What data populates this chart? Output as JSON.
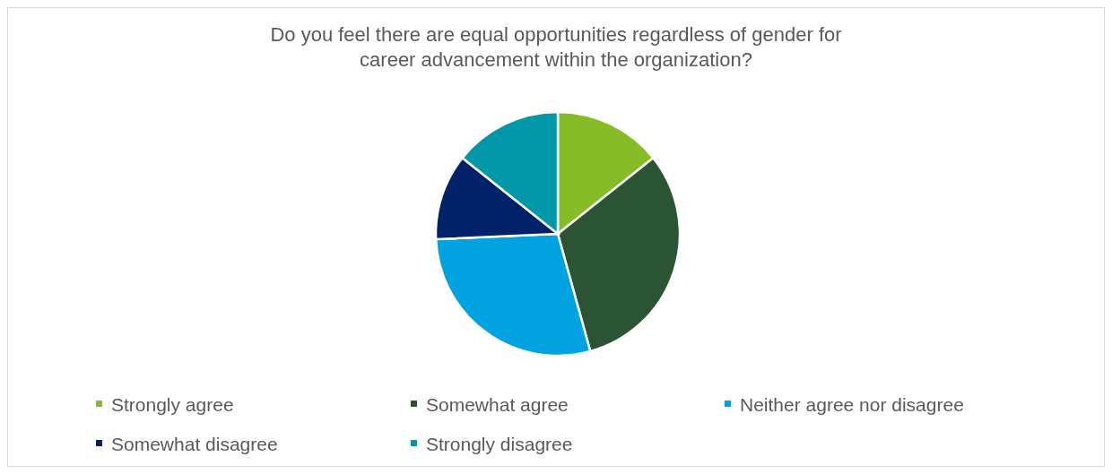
{
  "chart_data": {
    "type": "pie",
    "title": "Do you feel there are equal opportunities regardless of gender for career advancement within the organization?",
    "categories": [
      "Strongly agree",
      "Somewhat agree",
      "Neither agree nor disagree",
      "Somewhat disagree",
      "Strongly disagree"
    ],
    "values": [
      14.3,
      31.4,
      28.6,
      11.4,
      14.3
    ],
    "colors": [
      "#86bc25",
      "#2b5434",
      "#00a3e0",
      "#012169",
      "#0097a9"
    ],
    "legend": "bottom"
  }
}
